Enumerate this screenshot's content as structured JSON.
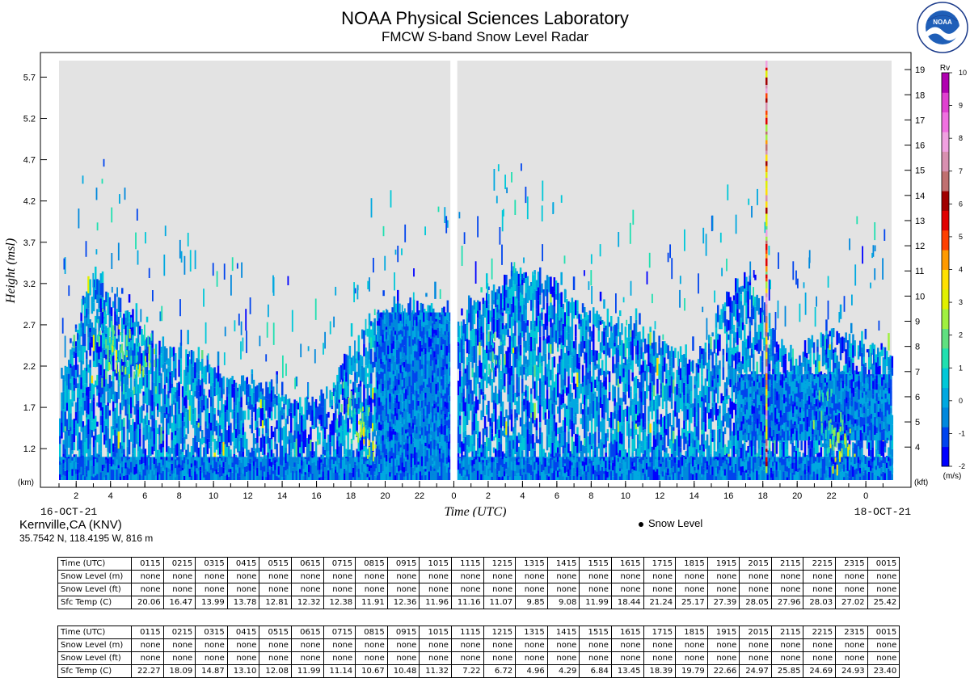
{
  "header": {
    "title": "NOAA Physical Sciences Laboratory",
    "subtitle": "FMCW S-band Snow Level Radar",
    "logo_text": "NOAA"
  },
  "station": {
    "name": "Kernville,CA (KNV)",
    "coords": "35.7542 N, 118.4195 W, 816 m"
  },
  "legend": {
    "snow_level": "Snow Level"
  },
  "colors": {
    "background": "#e3e3e3",
    "scale": [
      "#0000ff",
      "#0044ee",
      "#0088dd",
      "#00a8e0",
      "#00c8d8",
      "#20e0b0",
      "#60e080",
      "#a0f040",
      "#e0f000",
      "#ffe000",
      "#ff9a00",
      "#ff4000",
      "#e00000",
      "#a00000",
      "#c07070",
      "#d890b0",
      "#f0a0e0",
      "#f070e0",
      "#e040d0",
      "#b000b0"
    ]
  },
  "chart_data": {
    "type": "heatmap",
    "title": "NOAA Physical Sciences Laboratory",
    "subtitle": "FMCW S-band Snow Level Radar",
    "xlabel": "Time (UTC)",
    "ylabel": "Height (msl)",
    "left_unit": "(km)",
    "right_unit": "(kft)",
    "date_start": "16-OCT-21",
    "date_end": "18-OCT-21",
    "xlim": [
      1,
      49.5
    ],
    "ylim_km": [
      0.82,
      5.9
    ],
    "x_ticks": [
      {
        "x": 2,
        "label": "2"
      },
      {
        "x": 4,
        "label": "4"
      },
      {
        "x": 6,
        "label": "6"
      },
      {
        "x": 8,
        "label": "8"
      },
      {
        "x": 10,
        "label": "10"
      },
      {
        "x": 12,
        "label": "12"
      },
      {
        "x": 14,
        "label": "14"
      },
      {
        "x": 16,
        "label": "16"
      },
      {
        "x": 18,
        "label": "18"
      },
      {
        "x": 20,
        "label": "20"
      },
      {
        "x": 22,
        "label": "22"
      },
      {
        "x": 24,
        "label": "0"
      },
      {
        "x": 26,
        "label": "2"
      },
      {
        "x": 28,
        "label": "4"
      },
      {
        "x": 30,
        "label": "6"
      },
      {
        "x": 32,
        "label": "8"
      },
      {
        "x": 34,
        "label": "10"
      },
      {
        "x": 36,
        "label": "12"
      },
      {
        "x": 38,
        "label": "14"
      },
      {
        "x": 40,
        "label": "16"
      },
      {
        "x": 42,
        "label": "18"
      },
      {
        "x": 44,
        "label": "20"
      },
      {
        "x": 46,
        "label": "22"
      },
      {
        "x": 48,
        "label": "0"
      }
    ],
    "y_ticks_km": [
      "1.2",
      "1.7",
      "2.2",
      "2.7",
      "3.2",
      "3.7",
      "4.2",
      "4.7",
      "5.2",
      "5.7"
    ],
    "y_ticks_kft": [
      "4",
      "5",
      "6",
      "7",
      "8",
      "9",
      "10",
      "11",
      "12",
      "13",
      "14",
      "15",
      "16",
      "17",
      "18",
      "19"
    ],
    "data_gap": [
      23.8,
      24.2
    ],
    "colorbar": {
      "label": "Rv",
      "unit": "(m/s)",
      "range": [
        -2,
        10
      ],
      "ticks": [
        "-2",
        "-1",
        "0",
        "1",
        "2",
        "3",
        "4",
        "5",
        "6",
        "7",
        "8",
        "9",
        "10"
      ]
    },
    "echo_tops_km": [
      {
        "x": 1,
        "top": 1.7
      },
      {
        "x": 2,
        "top": 2.7
      },
      {
        "x": 3,
        "top": 3.3
      },
      {
        "x": 4,
        "top": 3.0
      },
      {
        "x": 5,
        "top": 2.8
      },
      {
        "x": 6,
        "top": 2.5
      },
      {
        "x": 7,
        "top": 2.4
      },
      {
        "x": 8,
        "top": 2.3
      },
      {
        "x": 9,
        "top": 2.2
      },
      {
        "x": 10,
        "top": 2.1
      },
      {
        "x": 11,
        "top": 2.0
      },
      {
        "x": 12,
        "top": 1.9
      },
      {
        "x": 13,
        "top": 1.9
      },
      {
        "x": 14,
        "top": 1.8
      },
      {
        "x": 15,
        "top": 1.7
      },
      {
        "x": 16,
        "top": 1.7
      },
      {
        "x": 17,
        "top": 1.9
      },
      {
        "x": 18,
        "top": 2.4
      },
      {
        "x": 19,
        "top": 2.6
      },
      {
        "x": 20,
        "top": 2.85
      },
      {
        "x": 21,
        "top": 2.85
      },
      {
        "x": 22,
        "top": 2.85
      },
      {
        "x": 23,
        "top": 2.85
      },
      {
        "x": 23.8,
        "top": 2.5
      },
      {
        "x": 24.2,
        "top": 2.6
      },
      {
        "x": 25,
        "top": 2.9
      },
      {
        "x": 26,
        "top": 3.0
      },
      {
        "x": 27,
        "top": 3.2
      },
      {
        "x": 28,
        "top": 3.3
      },
      {
        "x": 29,
        "top": 3.2
      },
      {
        "x": 30,
        "top": 3.1
      },
      {
        "x": 31,
        "top": 2.9
      },
      {
        "x": 32,
        "top": 2.8
      },
      {
        "x": 33,
        "top": 2.7
      },
      {
        "x": 34,
        "top": 2.6
      },
      {
        "x": 35,
        "top": 2.5
      },
      {
        "x": 36,
        "top": 2.4
      },
      {
        "x": 37,
        "top": 2.3
      },
      {
        "x": 38,
        "top": 2.2
      },
      {
        "x": 39,
        "top": 2.6
      },
      {
        "x": 40,
        "top": 3.0
      },
      {
        "x": 41,
        "top": 3.2
      },
      {
        "x": 42,
        "top": 2.8
      },
      {
        "x": 43,
        "top": 2.4
      },
      {
        "x": 44,
        "top": 2.2
      },
      {
        "x": 45,
        "top": 2.5
      },
      {
        "x": 46,
        "top": 2.6
      },
      {
        "x": 47,
        "top": 2.5
      },
      {
        "x": 48,
        "top": 2.4
      },
      {
        "x": 49.5,
        "top": 2.3
      }
    ],
    "dense_layers": [
      {
        "x0": 1,
        "x1": 23.8,
        "bottom": 0.82,
        "top": 1.1
      },
      {
        "x0": 24.2,
        "x1": 49.5,
        "bottom": 0.82,
        "top": 1.1
      },
      {
        "x0": 19.5,
        "x1": 23.8,
        "bottom": 0.82,
        "top": 2.85
      },
      {
        "x0": 40.5,
        "x1": 49.5,
        "bottom": 1.3,
        "top": 2.1
      }
    ],
    "warm_spots": [
      {
        "x": 4,
        "km": 2.3,
        "v": 2
      },
      {
        "x": 4.5,
        "km": 2.5,
        "v": 2.5
      },
      {
        "x": 5,
        "km": 2.2,
        "v": 2
      },
      {
        "x": 3.5,
        "km": 2.7,
        "v": 1.5
      },
      {
        "x": 6,
        "km": 2.4,
        "v": 2
      },
      {
        "x": 18.5,
        "km": 1.6,
        "v": 2
      },
      {
        "x": 19,
        "km": 1.3,
        "v": 3
      },
      {
        "x": 17.5,
        "km": 1.8,
        "v": 1.5
      },
      {
        "x": 46,
        "km": 1.4,
        "v": 2
      },
      {
        "x": 46.5,
        "km": 1.2,
        "v": 3
      },
      {
        "x": 45.5,
        "km": 1.7,
        "v": 1.5
      },
      {
        "x": 26.5,
        "km": 2.4,
        "v": 1.5
      }
    ],
    "vertical_streaks": [
      {
        "x": 42.2,
        "bottom": 0.95,
        "top": 5.9,
        "v": 5
      }
    ]
  },
  "table1": {
    "row_labels": [
      "Time (UTC)",
      "Snow Level (m)",
      "Snow Level (ft)",
      "Sfc Temp (C)"
    ],
    "times": [
      "0115",
      "0215",
      "0315",
      "0415",
      "0515",
      "0615",
      "0715",
      "0815",
      "0915",
      "1015",
      "1115",
      "1215",
      "1315",
      "1415",
      "1515",
      "1615",
      "1715",
      "1815",
      "1915",
      "2015",
      "2115",
      "2215",
      "2315",
      "0015"
    ],
    "snow_m": [
      "none",
      "none",
      "none",
      "none",
      "none",
      "none",
      "none",
      "none",
      "none",
      "none",
      "none",
      "none",
      "none",
      "none",
      "none",
      "none",
      "none",
      "none",
      "none",
      "none",
      "none",
      "none",
      "none",
      "none"
    ],
    "snow_ft": [
      "none",
      "none",
      "none",
      "none",
      "none",
      "none",
      "none",
      "none",
      "none",
      "none",
      "none",
      "none",
      "none",
      "none",
      "none",
      "none",
      "none",
      "none",
      "none",
      "none",
      "none",
      "none",
      "none",
      "none"
    ],
    "sfc_temp": [
      "20.06",
      "16.47",
      "13.99",
      "13.78",
      "12.81",
      "12.32",
      "12.38",
      "11.91",
      "12.36",
      "11.96",
      "11.16",
      "11.07",
      "9.85",
      "9.08",
      "11.99",
      "18.44",
      "21.24",
      "25.17",
      "27.39",
      "28.05",
      "27.96",
      "28.03",
      "27.02",
      "25.42"
    ]
  },
  "table2": {
    "row_labels": [
      "Time (UTC)",
      "Snow Level (m)",
      "Snow Level (ft)",
      "Sfc Temp (C)"
    ],
    "times": [
      "0115",
      "0215",
      "0315",
      "0415",
      "0515",
      "0615",
      "0715",
      "0815",
      "0915",
      "1015",
      "1115",
      "1215",
      "1315",
      "1415",
      "1515",
      "1615",
      "1715",
      "1815",
      "1915",
      "2015",
      "2115",
      "2215",
      "2315",
      "0015"
    ],
    "snow_m": [
      "none",
      "none",
      "none",
      "none",
      "none",
      "none",
      "none",
      "none",
      "none",
      "none",
      "none",
      "none",
      "none",
      "none",
      "none",
      "none",
      "none",
      "none",
      "none",
      "none",
      "none",
      "none",
      "none",
      "none"
    ],
    "snow_ft": [
      "none",
      "none",
      "none",
      "none",
      "none",
      "none",
      "none",
      "none",
      "none",
      "none",
      "none",
      "none",
      "none",
      "none",
      "none",
      "none",
      "none",
      "none",
      "none",
      "none",
      "none",
      "none",
      "none",
      "none"
    ],
    "sfc_temp": [
      "22.27",
      "18.09",
      "14.87",
      "13.10",
      "12.08",
      "11.99",
      "11.14",
      "10.67",
      "10.48",
      "11.32",
      "7.22",
      "6.72",
      "4.96",
      "4.29",
      "6.84",
      "13.45",
      "18.39",
      "19.79",
      "22.66",
      "24.97",
      "25.85",
      "24.69",
      "24.93",
      "23.40"
    ]
  }
}
